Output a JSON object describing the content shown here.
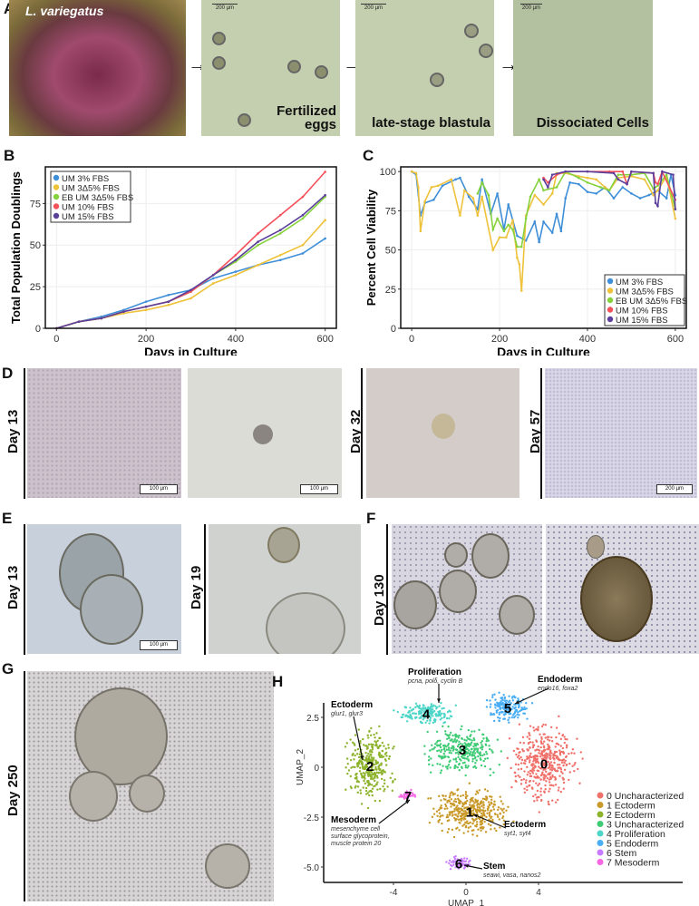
{
  "panels": {
    "a": "A",
    "b": "B",
    "c": "C",
    "d": "D",
    "e": "E",
    "f": "F",
    "g": "G",
    "h": "H"
  },
  "panel_a": {
    "species": "L. variegatus",
    "egg_caption": "Fertilized eggs",
    "blastula_caption": "late-stage blastula",
    "cells_caption": "Dissociated Cells",
    "scale": "200 µm"
  },
  "panel_d": {
    "day1": "Day 13",
    "day2": "Day 32",
    "day3": "Day 57",
    "scale1": "100 µm",
    "scale2": "100 µm",
    "scale4": "200 µm"
  },
  "panel_e": {
    "day1": "Day 13",
    "day2": "Day 19",
    "scale1": "100 µm"
  },
  "panel_f": {
    "day1": "Day 130"
  },
  "panel_g": {
    "day1": "Day 250"
  },
  "colors": {
    "blue": "#3F8FD8",
    "yellow": "#EEC23A",
    "green": "#86D23C",
    "red": "#F4515B",
    "purple": "#5B3F9B"
  },
  "chart_data": [
    {
      "type": "line",
      "title": "",
      "xlabel": "Days in Culture",
      "ylabel": "Total Population Doublings",
      "xlim": [
        -25,
        625
      ],
      "ylim": [
        0,
        97
      ],
      "xticks": [
        "0",
        "200",
        "400",
        "600"
      ],
      "yticks": [
        "0",
        "25",
        "50",
        "75"
      ],
      "legend": "top-left",
      "x": [
        0,
        50,
        100,
        150,
        200,
        250,
        300,
        350,
        400,
        450,
        500,
        550,
        600
      ],
      "series": [
        {
          "name": "UM 3% FBS",
          "color": "#3F8FD8",
          "values": [
            0,
            4,
            7,
            11,
            16,
            20,
            23,
            30,
            34,
            38,
            41,
            45,
            54
          ]
        },
        {
          "name": "UM 3Δ5% FBS",
          "color": "#EEC23A",
          "values": [
            0,
            4,
            6,
            9,
            11,
            14,
            18,
            27,
            32,
            38,
            44,
            50,
            65
          ]
        },
        {
          "name": "EB UM 3Δ5% FBS",
          "color": "#86D23C",
          "values": [
            0,
            4,
            6,
            10,
            13,
            16,
            22,
            32,
            40,
            50,
            57,
            66,
            79
          ]
        },
        {
          "name": "UM 10% FBS",
          "color": "#F4515B",
          "values": [
            0,
            4,
            6,
            10,
            13,
            16,
            22,
            32,
            44,
            57,
            68,
            79,
            94
          ]
        },
        {
          "name": "UM 15% FBS",
          "color": "#5B3F9B",
          "values": [
            0,
            4,
            6,
            10,
            13,
            16,
            23,
            32,
            41,
            52,
            59,
            68,
            80
          ]
        }
      ]
    },
    {
      "type": "line",
      "title": "",
      "xlabel": "Days in Culture",
      "ylabel": "Percent Cell Viability",
      "xlim": [
        -25,
        625
      ],
      "ylim": [
        0,
        103
      ],
      "xticks": [
        "0",
        "200",
        "400",
        "600"
      ],
      "yticks": [
        "0",
        "25",
        "50",
        "75",
        "100"
      ],
      "legend": "bottom-right",
      "series": [
        {
          "name": "UM 3% FBS",
          "color": "#3F8FD8",
          "x": [
            0,
            10,
            20,
            30,
            50,
            70,
            100,
            110,
            130,
            150,
            160,
            180,
            195,
            210,
            220,
            240,
            260,
            280,
            290,
            300,
            320,
            330,
            340,
            350,
            360,
            380,
            400,
            420,
            440,
            460,
            480,
            500,
            520,
            540,
            560,
            580,
            590,
            600
          ],
          "values": [
            100,
            98,
            72,
            80,
            82,
            91,
            95,
            96,
            84,
            76,
            95,
            73,
            86,
            63,
            79,
            59,
            56,
            68,
            55,
            68,
            61,
            73,
            62,
            83,
            93,
            92,
            87,
            86,
            90,
            83,
            90,
            86,
            83,
            85,
            88,
            83,
            98,
            85
          ]
        },
        {
          "name": "UM 3Δ5% FBS",
          "color": "#EEC23A",
          "x": [
            0,
            10,
            15,
            20,
            30,
            45,
            60,
            90,
            110,
            120,
            140,
            150,
            160,
            185,
            200,
            215,
            230,
            240,
            245,
            250,
            260,
            280,
            300,
            320,
            330,
            350,
            380,
            400,
            420,
            440,
            450,
            470,
            500,
            530,
            550,
            560,
            580,
            600
          ],
          "values": [
            100,
            99,
            90,
            62,
            81,
            90,
            91,
            95,
            72,
            88,
            83,
            72,
            84,
            50,
            58,
            58,
            69,
            45,
            41,
            24,
            72,
            85,
            79,
            86,
            99,
            99,
            97,
            96,
            95,
            90,
            88,
            96,
            97,
            95,
            85,
            88,
            97,
            70
          ]
        },
        {
          "name": "EB UM 3Δ5% FBS",
          "color": "#86D23C",
          "x": [
            150,
            160,
            175,
            185,
            195,
            210,
            220,
            230,
            240,
            250,
            260,
            270,
            290,
            300,
            330,
            350,
            380,
            400,
            430,
            450,
            470,
            500,
            530,
            550,
            560,
            580,
            600
          ],
          "values": [
            86,
            93,
            85,
            63,
            70,
            62,
            66,
            63,
            52,
            52,
            70,
            84,
            95,
            88,
            90,
            100,
            96,
            93,
            90,
            88,
            98,
            98,
            99,
            89,
            91,
            98,
            76
          ]
        },
        {
          "name": "UM 10% FBS",
          "color": "#F4515B",
          "x": [
            300,
            310,
            330,
            350,
            400,
            450,
            480,
            490,
            500,
            550,
            555,
            560,
            570,
            600
          ],
          "values": [
            96,
            93,
            98,
            100,
            100,
            100,
            100,
            92,
            100,
            99,
            93,
            92,
            100,
            82
          ]
        },
        {
          "name": "UM 15% FBS",
          "color": "#5B3F9B",
          "x": [
            300,
            310,
            320,
            350,
            400,
            460,
            470,
            490,
            500,
            550,
            555,
            560,
            570,
            595,
            600
          ],
          "values": [
            95,
            90,
            98,
            100,
            100,
            99,
            95,
            92,
            100,
            99,
            80,
            78,
            100,
            98,
            76
          ]
        }
      ]
    },
    {
      "type": "scatter",
      "title": "",
      "xlabel": "UMAP_1",
      "ylabel": "UMAP_2",
      "xlim": [
        -7.8,
        10.5
      ],
      "ylim": [
        -5.8,
        4
      ],
      "xticks": [
        -4,
        0,
        4
      ],
      "yticks": [
        -5.0,
        -2.5,
        0,
        2.5
      ],
      "xtick_labels": [
        "-4",
        "0",
        "4"
      ],
      "ytick_labels": [
        "-5.0",
        "-2.5",
        "0",
        "2.5"
      ],
      "legend": "right",
      "clusters": [
        {
          "id": "0",
          "name": "0 Uncharacterized",
          "color": "#F0706A",
          "center": [
            4.3,
            0.2
          ],
          "spread": [
            1.5,
            1.7
          ],
          "n": 420
        },
        {
          "id": "1",
          "name": "1 Ectoderm",
          "color": "#C99A2A",
          "center": [
            0.2,
            -2.2
          ],
          "spread": [
            1.9,
            1.1
          ],
          "n": 380
        },
        {
          "id": "2",
          "name": "2 Ectoderm",
          "color": "#8DB32C",
          "center": [
            -5.3,
            0.1
          ],
          "spread": [
            1.2,
            1.6
          ],
          "n": 330
        },
        {
          "id": "3",
          "name": "3 Uncharacterized",
          "color": "#3FCB75",
          "center": [
            -0.2,
            0.9
          ],
          "spread": [
            1.8,
            1.0
          ],
          "n": 300
        },
        {
          "id": "4",
          "name": "4 Proliferation",
          "color": "#4DD6C8",
          "center": [
            -2.2,
            2.7
          ],
          "spread": [
            1.4,
            0.5
          ],
          "n": 170
        },
        {
          "id": "5",
          "name": "5 Endoderm",
          "color": "#4AAEF5",
          "center": [
            2.3,
            3.0
          ],
          "spread": [
            1.1,
            0.6
          ],
          "n": 170
        },
        {
          "id": "6",
          "name": "6 Stem",
          "color": "#C77CFF",
          "center": [
            -0.4,
            -4.8
          ],
          "spread": [
            0.6,
            0.3
          ],
          "n": 70
        },
        {
          "id": "7",
          "name": "7 Mesoderm",
          "color": "#F766E3",
          "center": [
            -3.2,
            -1.4
          ],
          "spread": [
            0.4,
            0.2
          ],
          "n": 35
        }
      ],
      "annotations": [
        {
          "title": "Proliferation",
          "genes": "pcna, polδ, cyclin B"
        },
        {
          "title": "Endoderm",
          "genes": "endo16, foxa2"
        },
        {
          "title": "Ectoderm",
          "genes": "glur1, glur3"
        },
        {
          "title": "Mesoderm",
          "genes": "mesenchyme cell surface glycoprotein, muscle protein 20"
        },
        {
          "title": "Ectoderm",
          "genes": "syt1, syt4"
        },
        {
          "title": "Stem",
          "genes": "seawi, vasa, nanos2"
        }
      ]
    }
  ]
}
